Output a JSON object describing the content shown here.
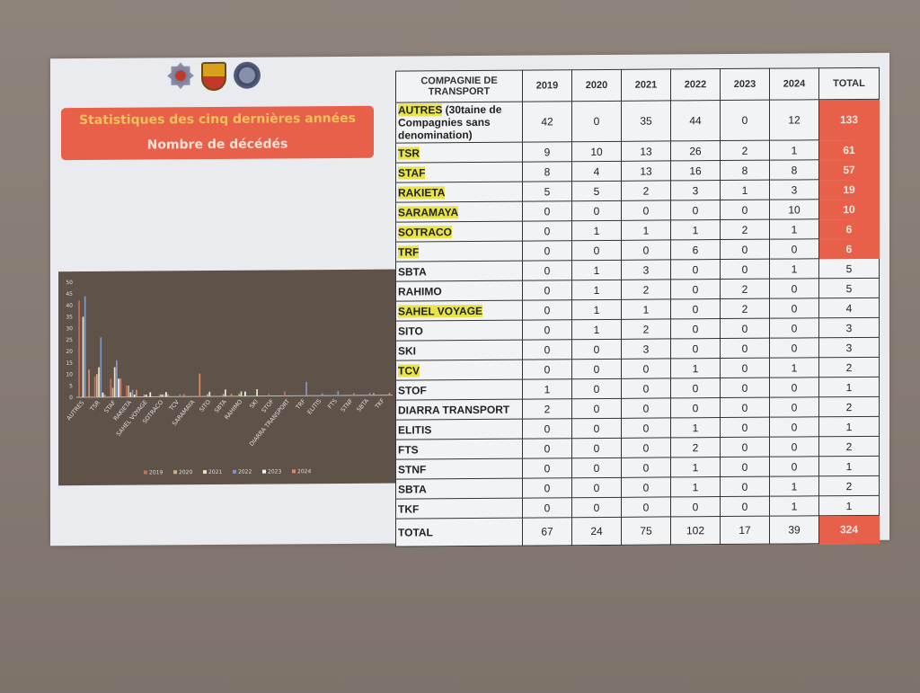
{
  "slide": {
    "title_line1": "Statistiques des cinq dernières années",
    "title_line2": "Nombre de décédés",
    "logos": [
      "police-emblem",
      "shield-crest",
      "round-seal"
    ]
  },
  "table": {
    "headers": [
      "COMPAGNIE DE TRANSPORT",
      "2019",
      "2020",
      "2021",
      "2022",
      "2023",
      "2024",
      "TOTAL"
    ],
    "highlight_color": "#e8e44a",
    "total_highlight_color": "#e8604a",
    "rows": [
      {
        "label": "AUTRES",
        "suffix": " (30taine de Compagnies sans denomination)",
        "highlight": true,
        "values": [
          "42",
          "0",
          "35",
          "44",
          "0",
          "12"
        ],
        "total": "133",
        "red": true
      },
      {
        "label": "TSR",
        "highlight": true,
        "values": [
          "9",
          "10",
          "13",
          "26",
          "2",
          "1"
        ],
        "total": "61",
        "red": true
      },
      {
        "label": "STAF",
        "highlight": true,
        "values": [
          "8",
          "4",
          "13",
          "16",
          "8",
          "8"
        ],
        "total": "57",
        "red": true
      },
      {
        "label": "RAKIETA",
        "highlight": true,
        "values": [
          "5",
          "5",
          "2",
          "3",
          "1",
          "3"
        ],
        "total": "19",
        "red": true
      },
      {
        "label": "SARAMAYA",
        "highlight": true,
        "values": [
          "0",
          "0",
          "0",
          "0",
          "0",
          "10"
        ],
        "total": "10",
        "red": true
      },
      {
        "label": "SOTRACO",
        "highlight": true,
        "values": [
          "0",
          "1",
          "1",
          "1",
          "2",
          "1"
        ],
        "total": "6",
        "red": true
      },
      {
        "label": "TRF",
        "highlight": true,
        "values": [
          "0",
          "0",
          "0",
          "6",
          "0",
          "0"
        ],
        "total": "6",
        "red": true
      },
      {
        "label": "SBTA",
        "highlight": false,
        "values": [
          "0",
          "1",
          "3",
          "0",
          "0",
          "1"
        ],
        "total": "5",
        "red": false
      },
      {
        "label": "RAHIMO",
        "highlight": false,
        "values": [
          "0",
          "1",
          "2",
          "0",
          "2",
          "0"
        ],
        "total": "5",
        "red": false
      },
      {
        "label": "SAHEL VOYAGE",
        "highlight": true,
        "values": [
          "0",
          "1",
          "1",
          "0",
          "2",
          "0"
        ],
        "total": "4",
        "red": false
      },
      {
        "label": "SITO",
        "highlight": false,
        "values": [
          "0",
          "1",
          "2",
          "0",
          "0",
          "0"
        ],
        "total": "3",
        "red": false
      },
      {
        "label": "SKI",
        "highlight": false,
        "values": [
          "0",
          "0",
          "3",
          "0",
          "0",
          "0"
        ],
        "total": "3",
        "red": false
      },
      {
        "label": "TCV",
        "highlight": true,
        "values": [
          "0",
          "0",
          "0",
          "1",
          "0",
          "1"
        ],
        "total": "2",
        "red": false
      },
      {
        "label": "STOF",
        "highlight": false,
        "values": [
          "1",
          "0",
          "0",
          "0",
          "0",
          "0"
        ],
        "total": "1",
        "red": false
      },
      {
        "label": "DIARRA TRANSPORT",
        "highlight": false,
        "values": [
          "2",
          "0",
          "0",
          "0",
          "0",
          "0"
        ],
        "total": "2",
        "red": false
      },
      {
        "label": "ELITIS",
        "highlight": false,
        "values": [
          "0",
          "0",
          "0",
          "1",
          "0",
          "0"
        ],
        "total": "1",
        "red": false
      },
      {
        "label": "FTS",
        "highlight": false,
        "values": [
          "0",
          "0",
          "0",
          "2",
          "0",
          "0"
        ],
        "total": "2",
        "red": false
      },
      {
        "label": "STNF",
        "highlight": false,
        "values": [
          "0",
          "0",
          "0",
          "1",
          "0",
          "0"
        ],
        "total": "1",
        "red": false
      },
      {
        "label": "SBTA",
        "highlight": false,
        "values": [
          "0",
          "0",
          "0",
          "1",
          "0",
          "1"
        ],
        "total": "2",
        "red": false
      },
      {
        "label": "TKF",
        "highlight": false,
        "values": [
          "0",
          "0",
          "0",
          "0",
          "0",
          "1"
        ],
        "total": "1",
        "red": false
      }
    ],
    "total_row": {
      "label": "TOTAL",
      "values": [
        "67",
        "24",
        "75",
        "102",
        "17",
        "39"
      ],
      "total": "324",
      "red": true
    }
  },
  "chart_data": {
    "type": "bar",
    "categories": [
      "AUTRES",
      "TSR",
      "STAF",
      "RAKIETA",
      "SAHEL VOYAGE",
      "SOTRACO",
      "TCV",
      "SARAMAYA",
      "SITO",
      "SBTA",
      "RAHIMO",
      "SKI",
      "STOF",
      "DIARRA TRANSPORT",
      "TRF",
      "ELITIS",
      "FTS",
      "STNF",
      "SBTA",
      "TKF"
    ],
    "series": [
      {
        "name": "2019",
        "color": "#c0705a",
        "values": [
          42,
          9,
          8,
          5,
          0,
          0,
          0,
          0,
          0,
          0,
          0,
          0,
          1,
          2,
          0,
          0,
          0,
          0,
          0,
          0
        ]
      },
      {
        "name": "2020",
        "color": "#c9b08a",
        "values": [
          0,
          10,
          4,
          5,
          1,
          1,
          0,
          0,
          1,
          1,
          1,
          0,
          0,
          0,
          0,
          0,
          0,
          0,
          0,
          0
        ]
      },
      {
        "name": "2021",
        "color": "#e6e0c0",
        "values": [
          35,
          13,
          13,
          2,
          1,
          1,
          0,
          0,
          2,
          3,
          2,
          3,
          0,
          0,
          0,
          0,
          0,
          0,
          0,
          0
        ]
      },
      {
        "name": "2022",
        "color": "#7f95c4",
        "values": [
          44,
          26,
          16,
          3,
          0,
          1,
          1,
          0,
          0,
          0,
          0,
          0,
          0,
          0,
          6,
          1,
          2,
          1,
          1,
          0
        ]
      },
      {
        "name": "2023",
        "color": "#f2f2f2",
        "values": [
          0,
          2,
          8,
          1,
          2,
          2,
          0,
          0,
          0,
          0,
          2,
          0,
          0,
          0,
          0,
          0,
          0,
          0,
          0,
          0
        ]
      },
      {
        "name": "2024",
        "color": "#d98a6a",
        "values": [
          12,
          1,
          8,
          3,
          0,
          1,
          1,
          10,
          0,
          1,
          0,
          0,
          0,
          0,
          0,
          0,
          0,
          0,
          1,
          1
        ]
      }
    ],
    "ylim": [
      0,
      50
    ],
    "yticks": [
      0,
      5,
      10,
      15,
      20,
      25,
      30,
      35,
      40,
      45,
      50
    ],
    "legend": "bottom",
    "grid": false
  }
}
